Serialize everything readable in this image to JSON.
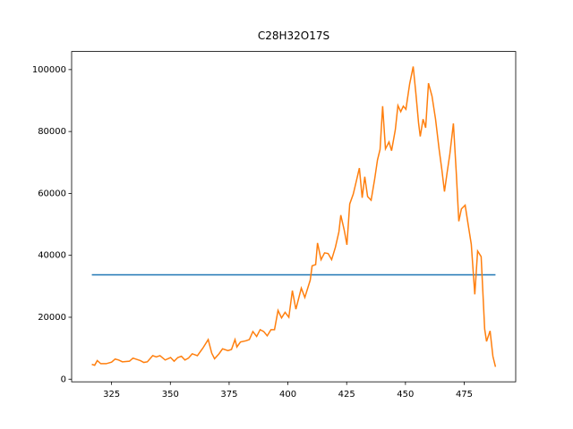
{
  "chart_data": {
    "type": "line",
    "title": "C28H32O17S",
    "xlim": [
      308.0,
      496.9
    ],
    "ylim": [
      -850,
      105850
    ],
    "xticks": [
      325,
      350,
      375,
      400,
      425,
      450,
      475
    ],
    "yticks": [
      0,
      20000,
      40000,
      60000,
      80000,
      100000
    ],
    "series": [
      {
        "color": "#1f77b4",
        "x": [
          316.6,
          488.3
        ],
        "values": [
          33700,
          33700
        ]
      },
      {
        "color": "#ff7f0e",
        "x": [
          316.6,
          317.8,
          318.9,
          320.4,
          322.7,
          325,
          326.5,
          328.0,
          329.6,
          332.6,
          334.1,
          337.2,
          338.7,
          340.2,
          342.5,
          344.0,
          345.6,
          347.8,
          350.1,
          351.6,
          353.2,
          354.7,
          356.2,
          357.7,
          359.3,
          361.5,
          363.8,
          366.1,
          367.6,
          368.8,
          370.7,
          372.2,
          374.5,
          376.0,
          377.5,
          378.3,
          379.8,
          382.1,
          383.6,
          385.1,
          386.7,
          388.2,
          389.7,
          391.2,
          392.8,
          394.3,
          395.8,
          397.3,
          398.8,
          400.4,
          401.9,
          403.4,
          405.7,
          407.2,
          409.5,
          410.3,
          411.8,
          412.6,
          414.1,
          415.6,
          417.1,
          418.6,
          420.2,
          421.7,
          422.5,
          424.0,
          425.1,
          426.3,
          427.8,
          429.3,
          430.4,
          431.6,
          432.7,
          433.9,
          435.4,
          436.9,
          438.1,
          439.2,
          440.3,
          441.5,
          443.0,
          444.1,
          445.7,
          446.8,
          448.0,
          449.1,
          450.2,
          451.8,
          453.3,
          454.4,
          455.6,
          456.3,
          457.5,
          458.6,
          459.8,
          461.3,
          462.8,
          464.3,
          465.5,
          466.6,
          467.7,
          468.9,
          470.4,
          471.6,
          472.7,
          473.8,
          475.4,
          476.5,
          478.0,
          479.5,
          480.7,
          482.2,
          483.7,
          484.5,
          486.0,
          487.2,
          488.3
        ],
        "values": [
          4800,
          4500,
          6000,
          5000,
          5000,
          5500,
          6500,
          6200,
          5600,
          5800,
          6800,
          6000,
          5400,
          5600,
          7600,
          7200,
          7600,
          6200,
          7000,
          5800,
          7000,
          7400,
          6200,
          6800,
          8200,
          7600,
          10000,
          12800,
          8400,
          6600,
          8200,
          9800,
          9200,
          9600,
          12800,
          10400,
          12000,
          12400,
          12800,
          15400,
          13800,
          16000,
          15400,
          14000,
          16000,
          16000,
          22200,
          19800,
          21600,
          20000,
          28600,
          22600,
          29400,
          26400,
          32000,
          36600,
          37000,
          44000,
          38600,
          40800,
          40600,
          38600,
          42600,
          47600,
          53000,
          48000,
          43400,
          56600,
          59800,
          64600,
          68200,
          58600,
          65400,
          59000,
          57800,
          64600,
          70800,
          74200,
          88200,
          74400,
          76600,
          73800,
          80600,
          88400,
          86400,
          88200,
          87200,
          95400,
          101000,
          92600,
          82600,
          78400,
          84000,
          81200,
          95600,
          91400,
          84000,
          74400,
          67600,
          60600,
          66600,
          72800,
          82600,
          67000,
          51000,
          55000,
          56200,
          50800,
          43600,
          27400,
          41400,
          39600,
          16200,
          12200,
          15600,
          7400,
          4000
        ]
      }
    ]
  }
}
